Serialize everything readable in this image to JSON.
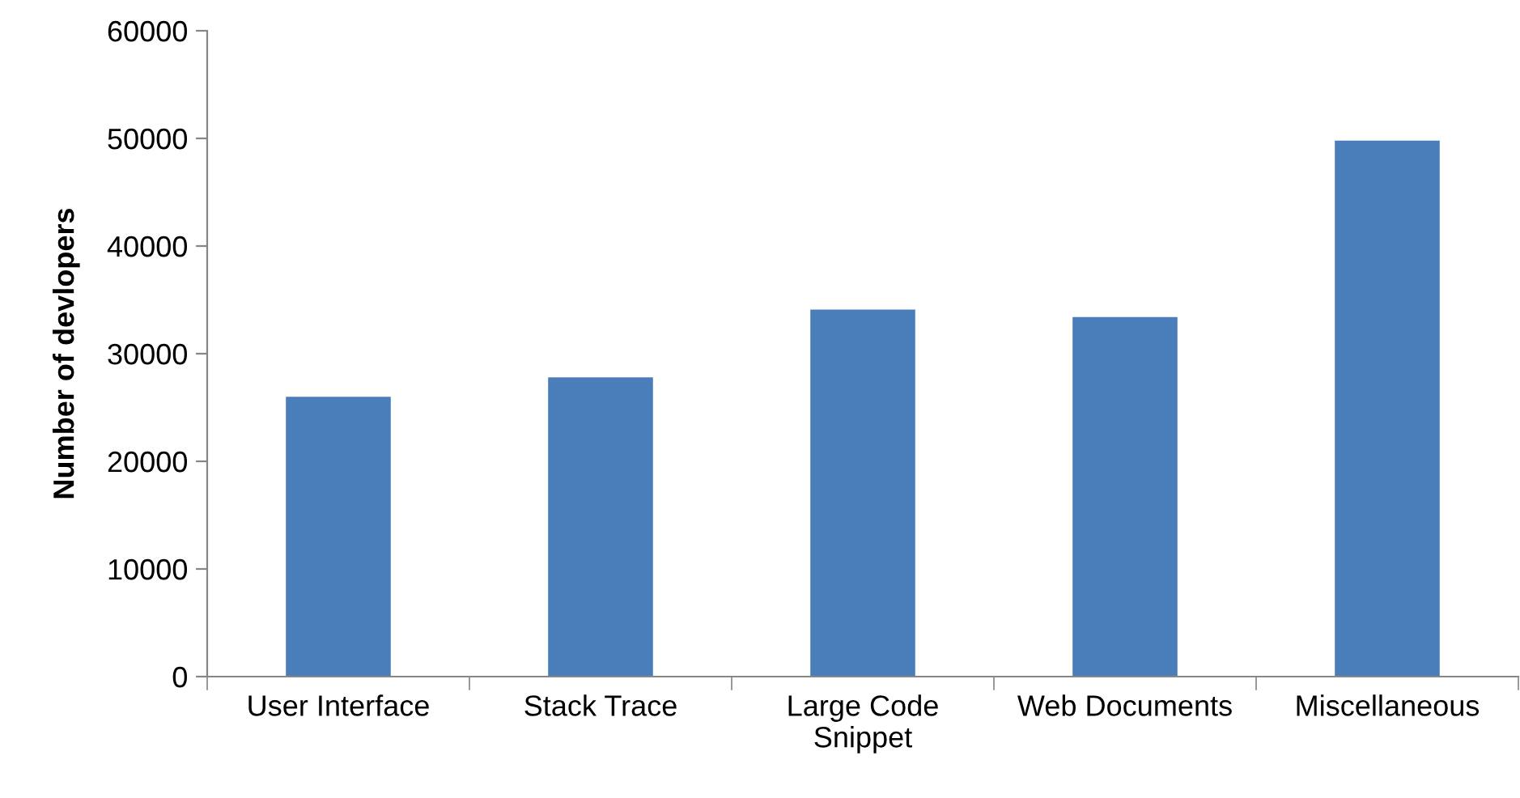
{
  "chart_data": {
    "type": "bar",
    "ylabel": "Number of devlopers",
    "categories": [
      "User Interface",
      "Stack Trace",
      "Large Code\nSnippet",
      "Web Documents",
      "Miscellaneous"
    ],
    "values": [
      26000,
      27800,
      34100,
      33400,
      49800
    ],
    "color": "#4a7ebb",
    "ylim": [
      0,
      60000
    ],
    "yticks": [
      0,
      10000,
      20000,
      30000,
      40000,
      50000,
      60000
    ],
    "grid": false
  }
}
